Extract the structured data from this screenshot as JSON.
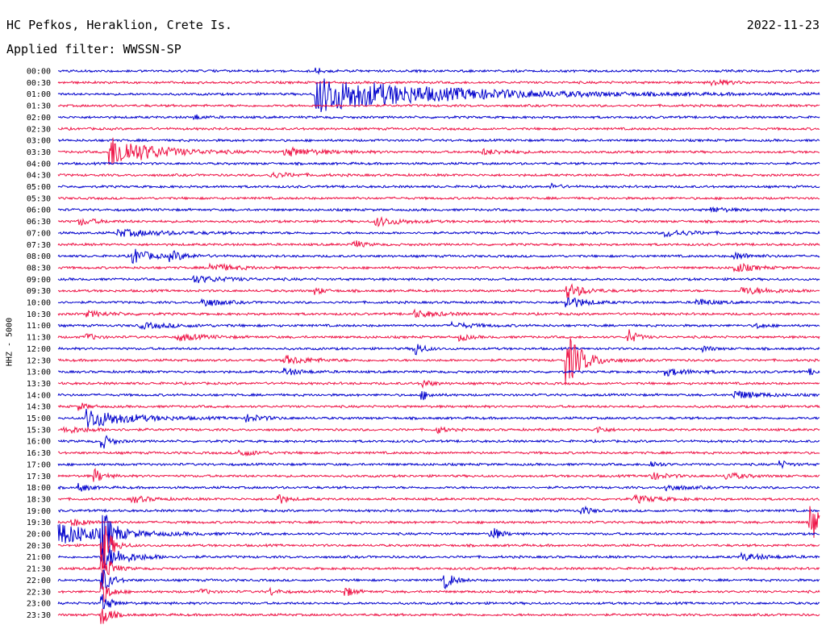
{
  "header": {
    "station": "HC Pefkos, Heraklion, Crete Is.",
    "date": "2022-11-23",
    "filter": "Applied filter: WWSSN-SP"
  },
  "chart_data": {
    "type": "line",
    "ylabel": "HHZ - 5000",
    "row_labels": [
      "00:00",
      "00:30",
      "01:00",
      "01:30",
      "02:00",
      "02:30",
      "03:00",
      "03:30",
      "04:00",
      "04:30",
      "05:00",
      "05:30",
      "06:00",
      "06:30",
      "07:00",
      "07:30",
      "08:00",
      "08:30",
      "09:00",
      "09:30",
      "10:00",
      "10:30",
      "11:00",
      "11:30",
      "12:00",
      "12:30",
      "13:00",
      "13:30",
      "14:00",
      "14:30",
      "15:00",
      "15:30",
      "16:00",
      "16:30",
      "17:00",
      "17:30",
      "18:00",
      "18:30",
      "19:00",
      "19:30",
      "20:00",
      "20:30",
      "21:00",
      "21:30",
      "22:00",
      "22:30",
      "23:00",
      "23:30"
    ],
    "colors": [
      "#0000cc",
      "#ee1144"
    ],
    "row_duration_min": 30,
    "events": [
      {
        "row": 0,
        "t": 0.34,
        "a": 3,
        "d": 0.01
      },
      {
        "row": 1,
        "t": 0.86,
        "a": 4,
        "d": 0.02
      },
      {
        "row": 2,
        "t": 0.34,
        "a": 22,
        "d": 0.15
      },
      {
        "row": 4,
        "t": 0.18,
        "a": 3,
        "d": 0.01
      },
      {
        "row": 7,
        "t": 0.07,
        "a": 20,
        "d": 0.05
      },
      {
        "row": 7,
        "t": 0.3,
        "a": 5,
        "d": 0.04
      },
      {
        "row": 7,
        "t": 0.56,
        "a": 3,
        "d": 0.03
      },
      {
        "row": 9,
        "t": 0.28,
        "a": 3,
        "d": 0.03
      },
      {
        "row": 10,
        "t": 0.65,
        "a": 3,
        "d": 0.01
      },
      {
        "row": 12,
        "t": 0.86,
        "a": 3,
        "d": 0.02
      },
      {
        "row": 13,
        "t": 0.03,
        "a": 4,
        "d": 0.02
      },
      {
        "row": 13,
        "t": 0.42,
        "a": 5,
        "d": 0.03
      },
      {
        "row": 14,
        "t": 0.08,
        "a": 4,
        "d": 0.06
      },
      {
        "row": 14,
        "t": 0.8,
        "a": 4,
        "d": 0.03
      },
      {
        "row": 15,
        "t": 0.39,
        "a": 5,
        "d": 0.01
      },
      {
        "row": 16,
        "t": 0.1,
        "a": 9,
        "d": 0.02
      },
      {
        "row": 16,
        "t": 0.15,
        "a": 5,
        "d": 0.02
      },
      {
        "row": 16,
        "t": 0.89,
        "a": 4,
        "d": 0.02
      },
      {
        "row": 17,
        "t": 0.2,
        "a": 5,
        "d": 0.03
      },
      {
        "row": 17,
        "t": 0.89,
        "a": 6,
        "d": 0.02
      },
      {
        "row": 18,
        "t": 0.18,
        "a": 4,
        "d": 0.04
      },
      {
        "row": 19,
        "t": 0.34,
        "a": 4,
        "d": 0.01
      },
      {
        "row": 19,
        "t": 0.67,
        "a": 9,
        "d": 0.02
      },
      {
        "row": 19,
        "t": 0.9,
        "a": 4,
        "d": 0.04
      },
      {
        "row": 20,
        "t": 0.19,
        "a": 6,
        "d": 0.02
      },
      {
        "row": 20,
        "t": 0.67,
        "a": 8,
        "d": 0.02
      },
      {
        "row": 20,
        "t": 0.84,
        "a": 4,
        "d": 0.02
      },
      {
        "row": 21,
        "t": 0.04,
        "a": 3,
        "d": 0.03
      },
      {
        "row": 21,
        "t": 0.47,
        "a": 4,
        "d": 0.03
      },
      {
        "row": 22,
        "t": 0.11,
        "a": 3,
        "d": 0.05
      },
      {
        "row": 22,
        "t": 0.52,
        "a": 3,
        "d": 0.03
      },
      {
        "row": 22,
        "t": 0.92,
        "a": 3,
        "d": 0.01
      },
      {
        "row": 23,
        "t": 0.04,
        "a": 4,
        "d": 0.01
      },
      {
        "row": 23,
        "t": 0.16,
        "a": 4,
        "d": 0.03
      },
      {
        "row": 23,
        "t": 0.53,
        "a": 4,
        "d": 0.01
      },
      {
        "row": 23,
        "t": 0.75,
        "a": 9,
        "d": 0.01
      },
      {
        "row": 24,
        "t": 0.47,
        "a": 8,
        "d": 0.01
      },
      {
        "row": 24,
        "t": 0.85,
        "a": 3,
        "d": 0.01
      },
      {
        "row": 25,
        "t": 0.3,
        "a": 5,
        "d": 0.03
      },
      {
        "row": 25,
        "t": 0.67,
        "a": 30,
        "d": 0.02
      },
      {
        "row": 26,
        "t": 0.3,
        "a": 4,
        "d": 0.02
      },
      {
        "row": 26,
        "t": 0.8,
        "a": 4,
        "d": 0.03
      },
      {
        "row": 26,
        "t": 0.99,
        "a": 3,
        "d": 0.01
      },
      {
        "row": 27,
        "t": 0.48,
        "a": 5,
        "d": 0.01
      },
      {
        "row": 28,
        "t": 0.48,
        "a": 5,
        "d": 0.01
      },
      {
        "row": 28,
        "t": 0.89,
        "a": 5,
        "d": 0.03
      },
      {
        "row": 29,
        "t": 0.03,
        "a": 4,
        "d": 0.01
      },
      {
        "row": 30,
        "t": 0.04,
        "a": 12,
        "d": 0.05
      },
      {
        "row": 30,
        "t": 0.25,
        "a": 4,
        "d": 0.02
      },
      {
        "row": 31,
        "t": 0.01,
        "a": 4,
        "d": 0.03
      },
      {
        "row": 31,
        "t": 0.5,
        "a": 4,
        "d": 0.01
      },
      {
        "row": 31,
        "t": 0.71,
        "a": 4,
        "d": 0.01
      },
      {
        "row": 32,
        "t": 0.06,
        "a": 8,
        "d": 0.01
      },
      {
        "row": 33,
        "t": 0.24,
        "a": 4,
        "d": 0.02
      },
      {
        "row": 34,
        "t": 0.78,
        "a": 4,
        "d": 0.01
      },
      {
        "row": 34,
        "t": 0.95,
        "a": 4,
        "d": 0.01
      },
      {
        "row": 35,
        "t": 0.05,
        "a": 8,
        "d": 0.01
      },
      {
        "row": 35,
        "t": 0.78,
        "a": 4,
        "d": 0.02
      },
      {
        "row": 35,
        "t": 0.88,
        "a": 4,
        "d": 0.02
      },
      {
        "row": 36,
        "t": 0.03,
        "a": 5,
        "d": 0.01
      },
      {
        "row": 36,
        "t": 0.8,
        "a": 4,
        "d": 0.02
      },
      {
        "row": 37,
        "t": 0.1,
        "a": 4,
        "d": 0.02
      },
      {
        "row": 37,
        "t": 0.29,
        "a": 6,
        "d": 0.01
      },
      {
        "row": 37,
        "t": 0.76,
        "a": 4,
        "d": 0.03
      },
      {
        "row": 38,
        "t": 0.69,
        "a": 5,
        "d": 0.01
      },
      {
        "row": 39,
        "t": 0.02,
        "a": 4,
        "d": 0.02
      },
      {
        "row": 39,
        "t": 0.99,
        "a": 22,
        "d": 0.02
      },
      {
        "row": 40,
        "t": 0.0,
        "a": 14,
        "d": 0.06
      },
      {
        "row": 40,
        "t": 0.06,
        "a": 30,
        "d": 0.01
      },
      {
        "row": 40,
        "t": 0.57,
        "a": 9,
        "d": 0.01
      },
      {
        "row": 41,
        "t": 0.06,
        "a": 30,
        "d": 0.01
      },
      {
        "row": 42,
        "t": 0.06,
        "a": 14,
        "d": 0.03
      },
      {
        "row": 42,
        "t": 0.9,
        "a": 4,
        "d": 0.03
      },
      {
        "row": 43,
        "t": 0.06,
        "a": 20,
        "d": 0.01
      },
      {
        "row": 44,
        "t": 0.06,
        "a": 15,
        "d": 0.01
      },
      {
        "row": 44,
        "t": 0.51,
        "a": 10,
        "d": 0.01
      },
      {
        "row": 45,
        "t": 0.06,
        "a": 12,
        "d": 0.01
      },
      {
        "row": 45,
        "t": 0.19,
        "a": 3,
        "d": 0.01
      },
      {
        "row": 45,
        "t": 0.28,
        "a": 4,
        "d": 0.01
      },
      {
        "row": 45,
        "t": 0.38,
        "a": 5,
        "d": 0.01
      },
      {
        "row": 46,
        "t": 0.06,
        "a": 10,
        "d": 0.01
      },
      {
        "row": 47,
        "t": 0.06,
        "a": 12,
        "d": 0.01
      }
    ]
  }
}
